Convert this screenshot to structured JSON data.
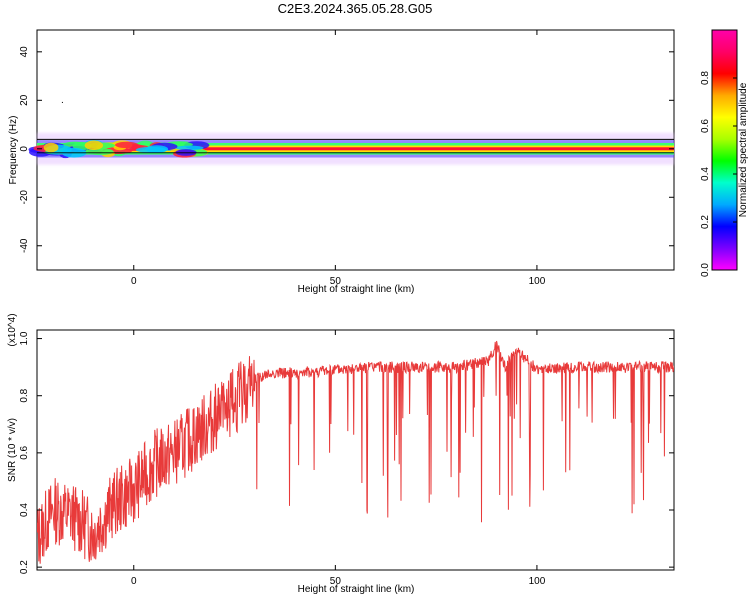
{
  "title": "C2E3.2024.365.05.28.G05",
  "colors": {
    "snr_line": "#e83a3a",
    "axis": "#000000",
    "background": "#ffffff"
  },
  "chart_data": [
    {
      "type": "heatmap",
      "name": "spectrogram",
      "xlabel": "Height of straight line (km)",
      "ylabel": "Frequency (Hz)",
      "xlim": [
        -24,
        134
      ],
      "ylim": [
        -50,
        49
      ],
      "x_ticks": [
        0,
        50,
        100
      ],
      "y_ticks": [
        -40,
        -20,
        0,
        20,
        40
      ],
      "band_center_hz": 0,
      "band_halfwidth_hz": 3,
      "colorbar": {
        "label": "Normalized spectral amplitude",
        "range": [
          0,
          1
        ],
        "ticks": [
          "0.0",
          "0.2",
          "0.4",
          "0.6",
          "0.8"
        ],
        "colormap": [
          "#ff00ff",
          "#7a00ff",
          "#0000ff",
          "#00aaff",
          "#00ffcc",
          "#00ff00",
          "#aaff00",
          "#ffff00",
          "#ffaa00",
          "#ff0000",
          "#ff0066",
          "#ff00aa"
        ]
      },
      "annotation": "."
    },
    {
      "type": "line",
      "name": "snr",
      "xlabel": "Height of straight line (km)",
      "ylabel": "SNR (10 * v/v)",
      "y_scale_label": "(x10^4)",
      "xlim": [
        -24,
        134
      ],
      "ylim": [
        0.19,
        1.03
      ],
      "x_ticks": [
        0,
        50,
        100
      ],
      "y_ticks": [
        0.2,
        0.4,
        0.6,
        0.8,
        1.0
      ],
      "x": [
        -24,
        -20,
        -15,
        -10,
        -5,
        0,
        5,
        10,
        15,
        20,
        25,
        30,
        35,
        40,
        50,
        60,
        70,
        80,
        88,
        90,
        92,
        95,
        100,
        110,
        120,
        134
      ],
      "y": [
        0.3,
        0.4,
        0.38,
        0.32,
        0.42,
        0.47,
        0.56,
        0.6,
        0.66,
        0.72,
        0.78,
        0.86,
        0.88,
        0.88,
        0.89,
        0.9,
        0.9,
        0.9,
        0.92,
        0.98,
        0.9,
        0.96,
        0.89,
        0.9,
        0.9,
        0.9
      ]
    }
  ]
}
